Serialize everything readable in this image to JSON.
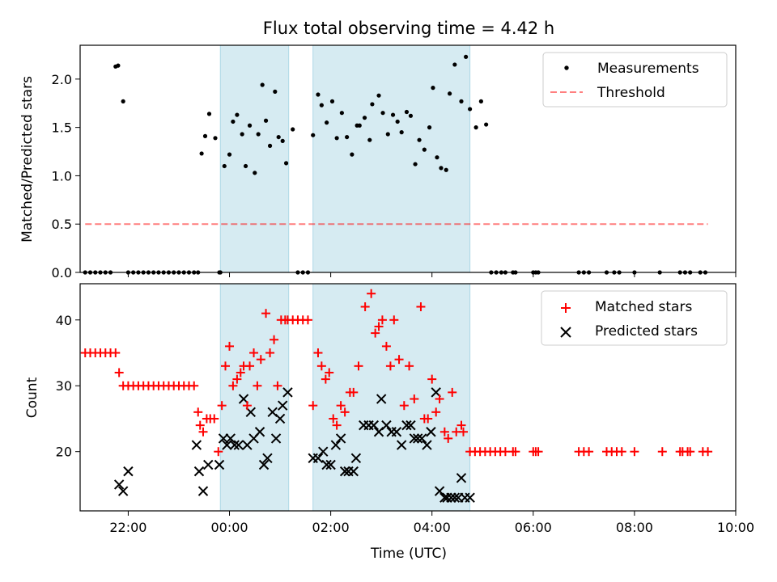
{
  "figure_title": "Flux total observing time = 4.42 h",
  "colors": {
    "shade": "#add8e6",
    "measurement": "#000000",
    "threshold": "#ff0000",
    "matched": "#ff0000",
    "predicted": "#000000"
  },
  "chart_data": [
    {
      "type": "scatter",
      "title": "Flux total observing time = 4.42 h",
      "ylabel": "Matched/Predicted stars",
      "xlabel": "",
      "xlim": [
        -2.95,
        10.0
      ],
      "ylim": [
        0,
        2.35
      ],
      "yticks": [
        0.0,
        0.5,
        1.0,
        1.5,
        2.0
      ],
      "ytick_labels": [
        "0.0",
        "0.5",
        "1.0",
        "1.5",
        "2.0"
      ],
      "legend_position": "upper right",
      "shaded_intervals": [
        [
          -0.18,
          1.17
        ],
        [
          1.65,
          4.75
        ]
      ],
      "series": [
        {
          "name": "Measurements",
          "marker": "dot",
          "x": [
            -2.85,
            -2.75,
            -2.65,
            -2.55,
            -2.45,
            -2.35,
            -2.25,
            -2.2,
            -2.1,
            -2.0,
            -1.9,
            -1.8,
            -1.7,
            -1.6,
            -1.5,
            -1.4,
            -1.3,
            -1.2,
            -1.1,
            -1.0,
            -0.9,
            -0.8,
            -0.7,
            -0.62,
            -0.55,
            -0.48,
            -0.4,
            -0.28,
            -0.2,
            -0.18,
            -0.1,
            0.0,
            0.07,
            0.15,
            0.25,
            0.32,
            0.4,
            0.5,
            0.57,
            0.65,
            0.72,
            0.8,
            0.9,
            0.97,
            1.05,
            1.12,
            1.25,
            1.35,
            1.45,
            1.55,
            1.65,
            1.75,
            1.82,
            1.92,
            2.03,
            2.12,
            2.22,
            2.32,
            2.42,
            2.52,
            2.57,
            2.67,
            2.77,
            2.82,
            2.95,
            3.03,
            3.13,
            3.23,
            3.32,
            3.4,
            3.5,
            3.58,
            3.67,
            3.75,
            3.85,
            3.95,
            4.02,
            4.1,
            4.18,
            4.28,
            4.35,
            4.45,
            4.58,
            4.67,
            4.75,
            4.87,
            4.97,
            5.07,
            5.17,
            5.27,
            5.37,
            5.45,
            5.6,
            5.65,
            6.0,
            6.05,
            6.1,
            6.9,
            7.0,
            7.1,
            7.45,
            7.6,
            7.7,
            8.0,
            8.5,
            8.9,
            9.0,
            9.1,
            9.3,
            9.4
          ],
          "y": [
            0,
            0,
            0,
            0,
            0,
            0,
            2.13,
            2.14,
            1.77,
            0,
            0,
            0,
            0,
            0,
            0,
            0,
            0,
            0,
            0,
            0,
            0,
            0,
            0,
            0,
            1.23,
            1.41,
            1.64,
            1.39,
            0,
            0,
            1.1,
            1.22,
            1.56,
            1.63,
            1.43,
            1.1,
            1.52,
            1.03,
            1.43,
            1.94,
            1.57,
            1.31,
            1.87,
            1.4,
            1.36,
            1.13,
            1.48,
            0,
            0,
            0,
            1.42,
            1.84,
            1.73,
            1.55,
            1.77,
            1.39,
            1.65,
            1.4,
            1.22,
            1.52,
            1.52,
            1.6,
            1.37,
            1.74,
            1.83,
            1.65,
            1.43,
            1.63,
            1.56,
            1.45,
            1.66,
            1.62,
            1.12,
            1.37,
            1.27,
            1.5,
            1.91,
            1.19,
            1.08,
            1.06,
            1.85,
            2.15,
            1.77,
            2.23,
            1.69,
            1.5,
            1.77,
            1.53,
            0,
            0,
            0,
            0,
            0,
            0,
            0,
            0,
            0,
            0,
            0,
            0,
            0,
            0,
            0,
            0,
            0,
            0,
            0,
            0,
            0,
            0
          ]
        },
        {
          "name": "Threshold",
          "marker": "dashed-line",
          "x": [
            -2.85,
            9.45
          ],
          "y": [
            0.5,
            0.5
          ]
        }
      ]
    },
    {
      "type": "scatter",
      "ylabel": "Count",
      "xlabel": "Time (UTC)",
      "xlim": [
        -2.95,
        10.0
      ],
      "ylim": [
        11,
        45.5
      ],
      "yticks": [
        20,
        30,
        40
      ],
      "ytick_labels": [
        "20",
        "30",
        "40"
      ],
      "xticks": [
        -2,
        0,
        2,
        4,
        6,
        8,
        10
      ],
      "xtick_labels": [
        "22:00",
        "00:00",
        "02:00",
        "04:00",
        "06:00",
        "08:00",
        "10:00"
      ],
      "legend_position": "upper right",
      "shaded_intervals": [
        [
          -0.18,
          1.17
        ],
        [
          1.65,
          4.75
        ]
      ],
      "series": [
        {
          "name": "Matched stars",
          "marker": "plus",
          "x": [
            -2.85,
            -2.75,
            -2.65,
            -2.55,
            -2.45,
            -2.35,
            -2.25,
            -2.18,
            -2.1,
            -2.0,
            -1.9,
            -1.8,
            -1.7,
            -1.6,
            -1.5,
            -1.4,
            -1.3,
            -1.2,
            -1.1,
            -1.0,
            -0.9,
            -0.8,
            -0.7,
            -0.62,
            -0.58,
            -0.52,
            -0.45,
            -0.38,
            -0.3,
            -0.22,
            -0.15,
            -0.08,
            0.0,
            0.07,
            0.15,
            0.22,
            0.28,
            0.35,
            0.4,
            0.48,
            0.55,
            0.62,
            0.72,
            0.8,
            0.88,
            0.95,
            1.02,
            1.1,
            1.15,
            1.25,
            1.35,
            1.45,
            1.55,
            1.65,
            1.75,
            1.82,
            1.9,
            1.97,
            2.05,
            2.12,
            2.2,
            2.28,
            2.38,
            2.45,
            2.55,
            2.68,
            2.8,
            2.88,
            2.95,
            3.02,
            3.1,
            3.18,
            3.25,
            3.35,
            3.45,
            3.55,
            3.65,
            3.78,
            3.85,
            3.92,
            4.0,
            4.08,
            4.15,
            4.25,
            4.32,
            4.4,
            4.48,
            4.58,
            4.62,
            4.75,
            4.85,
            4.95,
            5.05,
            5.15,
            5.25,
            5.35,
            5.45,
            5.6,
            5.65,
            6.0,
            6.05,
            6.1,
            6.9,
            7.0,
            7.1,
            7.45,
            7.55,
            7.65,
            7.75,
            8.0,
            8.55,
            8.9,
            8.95,
            9.05,
            9.1,
            9.35,
            9.45
          ],
          "y": [
            35,
            35,
            35,
            35,
            35,
            35,
            35,
            32,
            30,
            30,
            30,
            30,
            30,
            30,
            30,
            30,
            30,
            30,
            30,
            30,
            30,
            30,
            30,
            26,
            24,
            23,
            25,
            25,
            25,
            20,
            27,
            33,
            36,
            30,
            31,
            32,
            33,
            27,
            33,
            35,
            30,
            34,
            41,
            35,
            37,
            30,
            40,
            40,
            40,
            40,
            40,
            40,
            40,
            27,
            35,
            33,
            31,
            32,
            25,
            24,
            27,
            26,
            29,
            29,
            33,
            42,
            44,
            38,
            39,
            40,
            36,
            33,
            40,
            34,
            27,
            33,
            28,
            42,
            25,
            25,
            31,
            26,
            28,
            23,
            22,
            29,
            23,
            24,
            23,
            20,
            20,
            20,
            20,
            20,
            20,
            20,
            20,
            20,
            20,
            20,
            20,
            20,
            20,
            20,
            20,
            20,
            20,
            20,
            20,
            20,
            20,
            20,
            20,
            20,
            20,
            20,
            20
          ]
        },
        {
          "name": "Predicted stars",
          "marker": "x",
          "x": [
            -2.18,
            -2.1,
            -2.0,
            -0.65,
            -0.6,
            -0.52,
            -0.42,
            -0.2,
            -0.12,
            -0.05,
            0.02,
            0.1,
            0.18,
            0.28,
            0.35,
            0.42,
            0.48,
            0.6,
            0.68,
            0.75,
            0.85,
            0.92,
            1.0,
            1.05,
            1.15,
            1.65,
            1.75,
            1.85,
            1.92,
            2.0,
            2.1,
            2.2,
            2.28,
            2.35,
            2.45,
            2.5,
            2.65,
            2.75,
            2.85,
            2.95,
            3.0,
            3.1,
            3.2,
            3.3,
            3.4,
            3.5,
            3.58,
            3.65,
            3.72,
            3.8,
            3.9,
            3.98,
            4.08,
            4.15,
            4.25,
            4.3,
            4.38,
            4.45,
            4.52,
            4.58,
            4.65,
            4.75
          ],
          "y": [
            15,
            14,
            17,
            21,
            17,
            14,
            18,
            18,
            22,
            21,
            22,
            21,
            21,
            28,
            21,
            26,
            22,
            23,
            18,
            19,
            26,
            22,
            25,
            27,
            29,
            19,
            19,
            20,
            18,
            18,
            21,
            22,
            17,
            17,
            17,
            19,
            24,
            24,
            24,
            23,
            28,
            24,
            23,
            23,
            21,
            24,
            24,
            22,
            22,
            22,
            21,
            23,
            29,
            14,
            13,
            13,
            13,
            13,
            13,
            16,
            13,
            13
          ]
        }
      ]
    }
  ]
}
